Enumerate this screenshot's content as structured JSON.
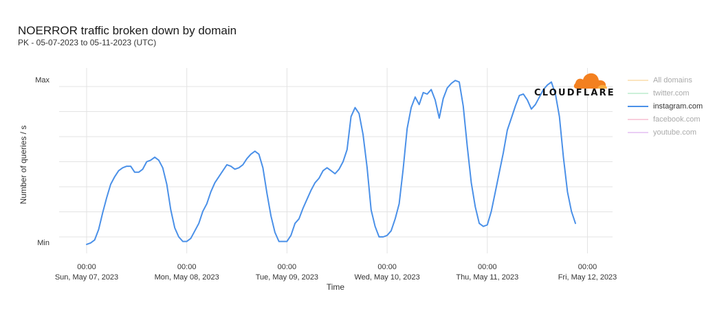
{
  "header": {
    "title": "NOERROR traffic broken down by domain",
    "subtitle": "PK - 05-07-2023 to 05-11-2023 (UTC)"
  },
  "logo": {
    "text": "CLOUDFLARE",
    "icon": "cloud-icon",
    "color": "#F38020"
  },
  "legend": [
    {
      "label": "All domains",
      "color": "#f7d08a",
      "active": false
    },
    {
      "label": "twitter.com",
      "color": "#a3e4b9",
      "active": false
    },
    {
      "label": "instagram.com",
      "color": "#4a90e8",
      "active": true
    },
    {
      "label": "facebook.com",
      "color": "#f4a6c0",
      "active": false
    },
    {
      "label": "youtube.com",
      "color": "#d9a6ec",
      "active": false
    }
  ],
  "chart_data": {
    "type": "line",
    "xlabel": "Time",
    "ylabel": "Number of queries / s",
    "y_tick_labels": [
      "Max",
      "Min"
    ],
    "x_ticks": [
      {
        "time": "00:00",
        "date": "Sun, May 07, 2023"
      },
      {
        "time": "00:00",
        "date": "Mon, May 08, 2023"
      },
      {
        "time": "00:00",
        "date": "Tue, May 09, 2023"
      },
      {
        "time": "00:00",
        "date": "Wed, May 10, 2023"
      },
      {
        "time": "00:00",
        "date": "Thu, May 11, 2023"
      },
      {
        "time": "00:00",
        "date": "Fri, May 12, 2023"
      }
    ],
    "grid": true,
    "x_unit": "days since Sun, May 07, 2023 00:00 UTC",
    "y_unit": "normalized (0 = Min, 1 = Max)",
    "series": [
      {
        "name": "instagram.com",
        "color": "#4a90e8",
        "points": [
          [
            0.0,
            -0.05
          ],
          [
            0.04,
            -0.04
          ],
          [
            0.08,
            -0.02
          ],
          [
            0.12,
            0.05
          ],
          [
            0.16,
            0.16
          ],
          [
            0.2,
            0.26
          ],
          [
            0.24,
            0.35
          ],
          [
            0.28,
            0.4
          ],
          [
            0.32,
            0.44
          ],
          [
            0.36,
            0.46
          ],
          [
            0.4,
            0.47
          ],
          [
            0.44,
            0.47
          ],
          [
            0.48,
            0.43
          ],
          [
            0.52,
            0.43
          ],
          [
            0.56,
            0.45
          ],
          [
            0.6,
            0.5
          ],
          [
            0.64,
            0.51
          ],
          [
            0.68,
            0.53
          ],
          [
            0.72,
            0.51
          ],
          [
            0.76,
            0.46
          ],
          [
            0.8,
            0.35
          ],
          [
            0.84,
            0.18
          ],
          [
            0.88,
            0.06
          ],
          [
            0.92,
            0.0
          ],
          [
            0.96,
            -0.03
          ],
          [
            1.0,
            -0.03
          ],
          [
            1.04,
            -0.01
          ],
          [
            1.08,
            0.04
          ],
          [
            1.12,
            0.09
          ],
          [
            1.16,
            0.17
          ],
          [
            1.2,
            0.22
          ],
          [
            1.24,
            0.3
          ],
          [
            1.28,
            0.36
          ],
          [
            1.32,
            0.4
          ],
          [
            1.36,
            0.44
          ],
          [
            1.4,
            0.48
          ],
          [
            1.44,
            0.47
          ],
          [
            1.48,
            0.45
          ],
          [
            1.52,
            0.46
          ],
          [
            1.56,
            0.48
          ],
          [
            1.6,
            0.52
          ],
          [
            1.64,
            0.55
          ],
          [
            1.68,
            0.57
          ],
          [
            1.72,
            0.55
          ],
          [
            1.76,
            0.46
          ],
          [
            1.8,
            0.29
          ],
          [
            1.84,
            0.14
          ],
          [
            1.88,
            0.03
          ],
          [
            1.92,
            -0.03
          ],
          [
            1.96,
            -0.03
          ],
          [
            2.0,
            -0.03
          ],
          [
            2.04,
            0.01
          ],
          [
            2.08,
            0.09
          ],
          [
            2.12,
            0.12
          ],
          [
            2.16,
            0.19
          ],
          [
            2.2,
            0.25
          ],
          [
            2.24,
            0.31
          ],
          [
            2.28,
            0.36
          ],
          [
            2.32,
            0.39
          ],
          [
            2.36,
            0.44
          ],
          [
            2.4,
            0.46
          ],
          [
            2.44,
            0.44
          ],
          [
            2.48,
            0.42
          ],
          [
            2.52,
            0.45
          ],
          [
            2.56,
            0.5
          ],
          [
            2.6,
            0.58
          ],
          [
            2.64,
            0.8
          ],
          [
            2.68,
            0.86
          ],
          [
            2.72,
            0.82
          ],
          [
            2.76,
            0.68
          ],
          [
            2.8,
            0.46
          ],
          [
            2.84,
            0.18
          ],
          [
            2.88,
            0.07
          ],
          [
            2.92,
            0.0
          ],
          [
            2.96,
            0.0
          ],
          [
            3.0,
            0.01
          ],
          [
            3.04,
            0.04
          ],
          [
            3.08,
            0.12
          ],
          [
            3.12,
            0.22
          ],
          [
            3.16,
            0.45
          ],
          [
            3.2,
            0.72
          ],
          [
            3.24,
            0.86
          ],
          [
            3.28,
            0.93
          ],
          [
            3.32,
            0.88
          ],
          [
            3.36,
            0.96
          ],
          [
            3.4,
            0.95
          ],
          [
            3.44,
            0.98
          ],
          [
            3.48,
            0.91
          ],
          [
            3.52,
            0.79
          ],
          [
            3.56,
            0.92
          ],
          [
            3.6,
            0.99
          ],
          [
            3.64,
            1.02
          ],
          [
            3.68,
            1.04
          ],
          [
            3.72,
            1.03
          ],
          [
            3.76,
            0.87
          ],
          [
            3.8,
            0.6
          ],
          [
            3.84,
            0.36
          ],
          [
            3.88,
            0.2
          ],
          [
            3.92,
            0.09
          ],
          [
            3.96,
            0.07
          ],
          [
            4.0,
            0.08
          ],
          [
            4.04,
            0.17
          ],
          [
            4.08,
            0.3
          ],
          [
            4.12,
            0.43
          ],
          [
            4.16,
            0.56
          ],
          [
            4.2,
            0.71
          ],
          [
            4.24,
            0.79
          ],
          [
            4.28,
            0.87
          ],
          [
            4.32,
            0.94
          ],
          [
            4.36,
            0.95
          ],
          [
            4.4,
            0.91
          ],
          [
            4.44,
            0.85
          ],
          [
            4.48,
            0.88
          ],
          [
            4.52,
            0.93
          ],
          [
            4.56,
            0.98
          ],
          [
            4.6,
            1.01
          ],
          [
            4.64,
            1.03
          ],
          [
            4.68,
            0.95
          ],
          [
            4.72,
            0.8
          ],
          [
            4.76,
            0.53
          ],
          [
            4.8,
            0.3
          ],
          [
            4.84,
            0.17
          ],
          [
            4.88,
            0.09
          ]
        ]
      }
    ]
  }
}
